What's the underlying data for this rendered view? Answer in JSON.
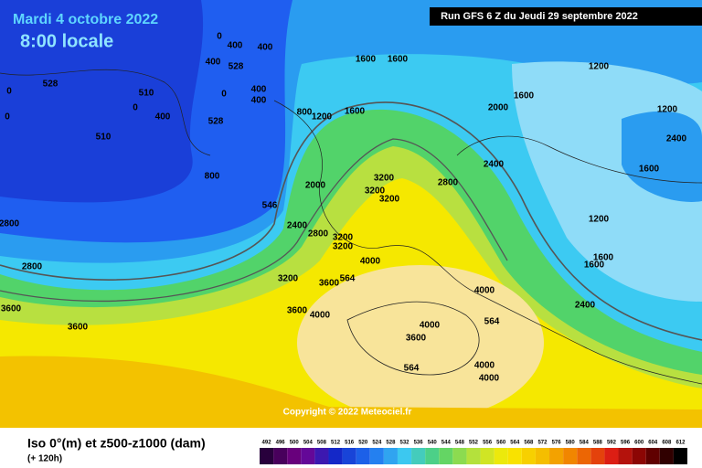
{
  "header": {
    "date": "Mardi 4 octobre 2022",
    "time": "8:00 locale",
    "run": "Run GFS 6 Z du Jeudi 29 septembre 2022"
  },
  "copyright": "Copyright © 2022 Meteociel.fr",
  "legend": {
    "title": "Iso 0°(m) et z500-z1000 (dam)",
    "subtitle": "(+ 120h)",
    "scale": [
      492,
      496,
      500,
      504,
      508,
      512,
      516,
      520,
      524,
      528,
      532,
      536,
      540,
      544,
      548,
      552,
      556,
      560,
      564,
      568,
      572,
      576,
      580,
      584,
      588,
      592,
      596,
      600,
      604,
      608,
      612
    ]
  },
  "map": {
    "labels": [
      "0",
      "400",
      "400",
      "400",
      "528",
      "0",
      "0",
      "528",
      "510",
      "0",
      "400",
      "0",
      "400",
      "400",
      "528",
      "510",
      "800",
      "1600",
      "1600",
      "1200",
      "1600",
      "1600",
      "1200",
      "800",
      "2000",
      "1200",
      "3200",
      "2000",
      "2800",
      "2400",
      "3200",
      "3200",
      "546",
      "2400",
      "2800",
      "3200",
      "3200",
      "1200",
      "2800",
      "2800",
      "4000",
      "564",
      "3200",
      "3600",
      "1600",
      "1600",
      "4000",
      "3600",
      "4000",
      "2400",
      "3600",
      "3600",
      "564",
      "4000",
      "3600",
      "564",
      "4000",
      "4000",
      "2400",
      "1600"
    ]
  }
}
